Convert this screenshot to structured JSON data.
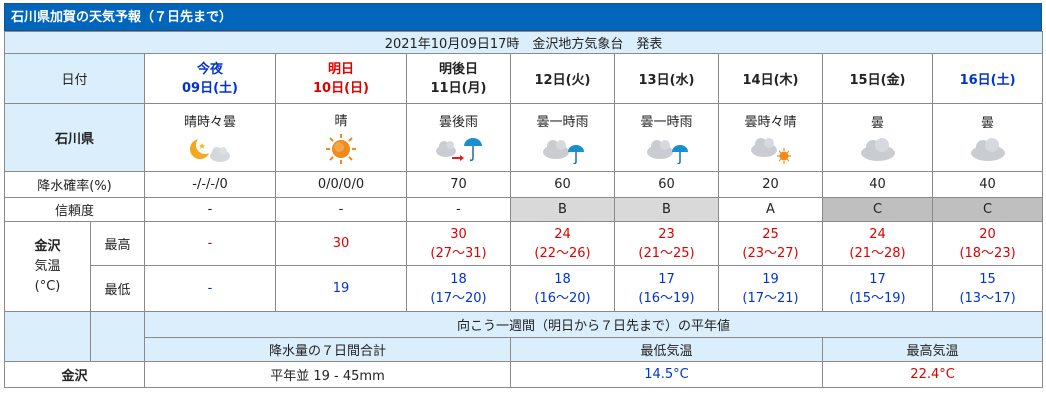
{
  "title": "石川県加賀の天気予報（７日先まで）",
  "issued": "2021年10月09日17時　金沢地方気象台　発表",
  "labels": {
    "date": "日付",
    "region": "石川県",
    "pop": "降水確率(%)",
    "reliability": "信頼度",
    "city": "金沢",
    "temp": "気温",
    "unit": "(°C)",
    "max": "最高",
    "min": "最低"
  },
  "days": [
    {
      "name": "今夜",
      "date": "09日(土)",
      "weather": "晴時々曇",
      "icon": "moon-cloud-icon",
      "pop": "-/-/-/0",
      "rel": "-",
      "max": "-",
      "max_range": "",
      "min": "-",
      "min_range": ""
    },
    {
      "name": "明日",
      "date": "10日(日)",
      "weather": "晴",
      "icon": "sun-icon",
      "pop": "0/0/0/0",
      "rel": "-",
      "max": "30",
      "max_range": "",
      "min": "19",
      "min_range": ""
    },
    {
      "name": "明後日",
      "date": "11日(月)",
      "weather": "曇後雨",
      "icon": "cloud-then-rain-icon",
      "pop": "70",
      "rel": "-",
      "max": "30",
      "max_range": "(27〜31)",
      "min": "18",
      "min_range": "(17〜20)"
    },
    {
      "name": "",
      "date": "12日(火)",
      "weather": "曇一時雨",
      "icon": "cloud-umbrella-icon",
      "pop": "60",
      "rel": "B",
      "max": "24",
      "max_range": "(22〜26)",
      "min": "18",
      "min_range": "(16〜20)"
    },
    {
      "name": "",
      "date": "13日(水)",
      "weather": "曇一時雨",
      "icon": "cloud-umbrella-icon",
      "pop": "60",
      "rel": "B",
      "max": "23",
      "max_range": "(21〜25)",
      "min": "17",
      "min_range": "(16〜19)"
    },
    {
      "name": "",
      "date": "14日(木)",
      "weather": "曇時々晴",
      "icon": "cloud-sun-icon",
      "pop": "20",
      "rel": "A",
      "max": "25",
      "max_range": "(23〜27)",
      "min": "19",
      "min_range": "(17〜21)"
    },
    {
      "name": "",
      "date": "15日(金)",
      "weather": "曇",
      "icon": "cloud-icon",
      "pop": "40",
      "rel": "C",
      "max": "24",
      "max_range": "(21〜28)",
      "min": "17",
      "min_range": "(15〜19)"
    },
    {
      "name": "",
      "date": "16日(土)",
      "weather": "曇",
      "icon": "cloud-icon",
      "pop": "40",
      "rel": "C",
      "max": "20",
      "max_range": "(18〜23)",
      "min": "15",
      "min_range": "(13〜17)"
    }
  ],
  "normals": {
    "heading": "向こう一週間（明日から７日先まで）の平年値",
    "precip_label": "降水量の７日間合計",
    "min_label": "最低気温",
    "max_label": "最高気温",
    "city": "金沢",
    "precip": "平年並 19 - 45mm",
    "min": "14.5°C",
    "max": "22.4°C"
  },
  "colors": {
    "header_bg": "#0066bb",
    "label_bg": "#dbeefb",
    "saturday": "#0033cc",
    "sunday": "#e00000",
    "rel_B": "#d9d9d9",
    "rel_C": "#bfbfbf"
  }
}
